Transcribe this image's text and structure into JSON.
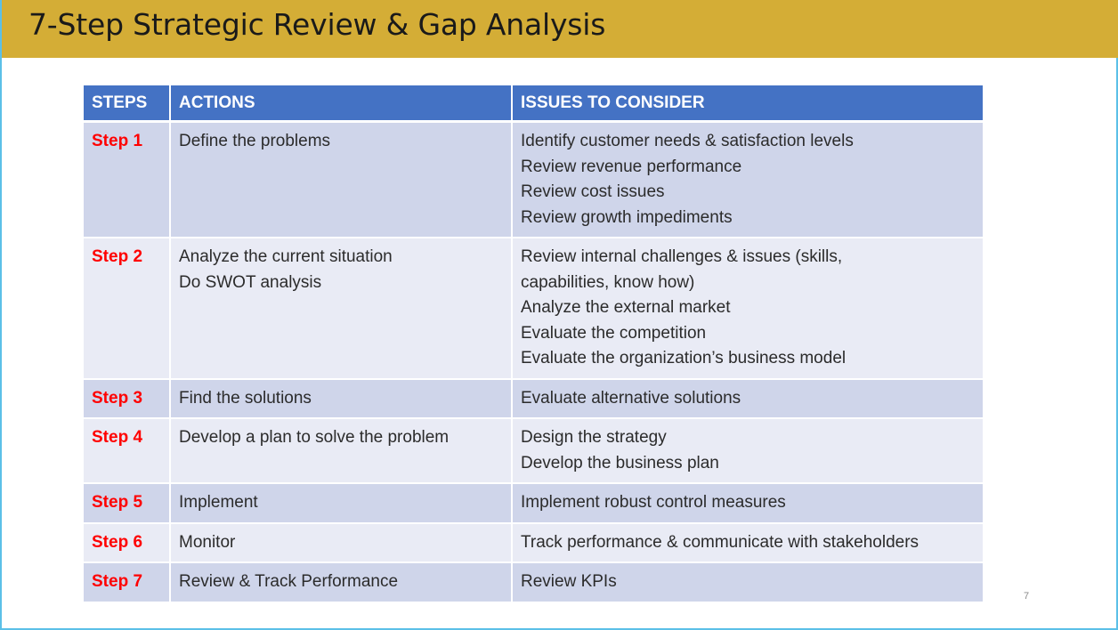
{
  "slide": {
    "title": "7-Step Strategic Review & Gap Analysis",
    "page_number": "7",
    "colors": {
      "title_bar": "#d4ad36",
      "header_bg": "#4472c4",
      "row_dark": "#cfd5ea",
      "row_light": "#e9ebf5",
      "step_text": "#ff0000",
      "border": "#5bc0e8"
    }
  },
  "table": {
    "headers": [
      "STEPS",
      "ACTIONS",
      "ISSUES TO CONSIDER"
    ],
    "rows": [
      {
        "step": "Step 1",
        "actions": [
          "Define the problems"
        ],
        "issues": [
          "Identify customer needs & satisfaction levels",
          "Review revenue performance",
          "Review cost issues",
          "Review growth impediments"
        ]
      },
      {
        "step": "Step 2",
        "actions": [
          "Analyze the current situation",
          "Do SWOT analysis"
        ],
        "issues": [
          "Review internal challenges & issues (skills,",
          "capabilities, know how)",
          "Analyze the external market",
          "Evaluate the competition",
          "Evaluate the organization’s business model"
        ]
      },
      {
        "step": "Step 3",
        "actions": [
          "Find the solutions"
        ],
        "issues": [
          "Evaluate alternative solutions"
        ]
      },
      {
        "step": "Step 4",
        "actions": [
          "Develop a plan to solve the problem"
        ],
        "issues": [
          "Design the strategy",
          "Develop the business plan"
        ]
      },
      {
        "step": "Step 5",
        "actions": [
          "Implement"
        ],
        "issues": [
          "Implement robust control measures"
        ]
      },
      {
        "step": "Step 6",
        "actions": [
          "Monitor"
        ],
        "issues": [
          "Track performance & communicate with stakeholders"
        ]
      },
      {
        "step": "Step 7",
        "actions": [
          "Review & Track Performance"
        ],
        "issues": [
          "Review KPIs"
        ]
      }
    ]
  }
}
